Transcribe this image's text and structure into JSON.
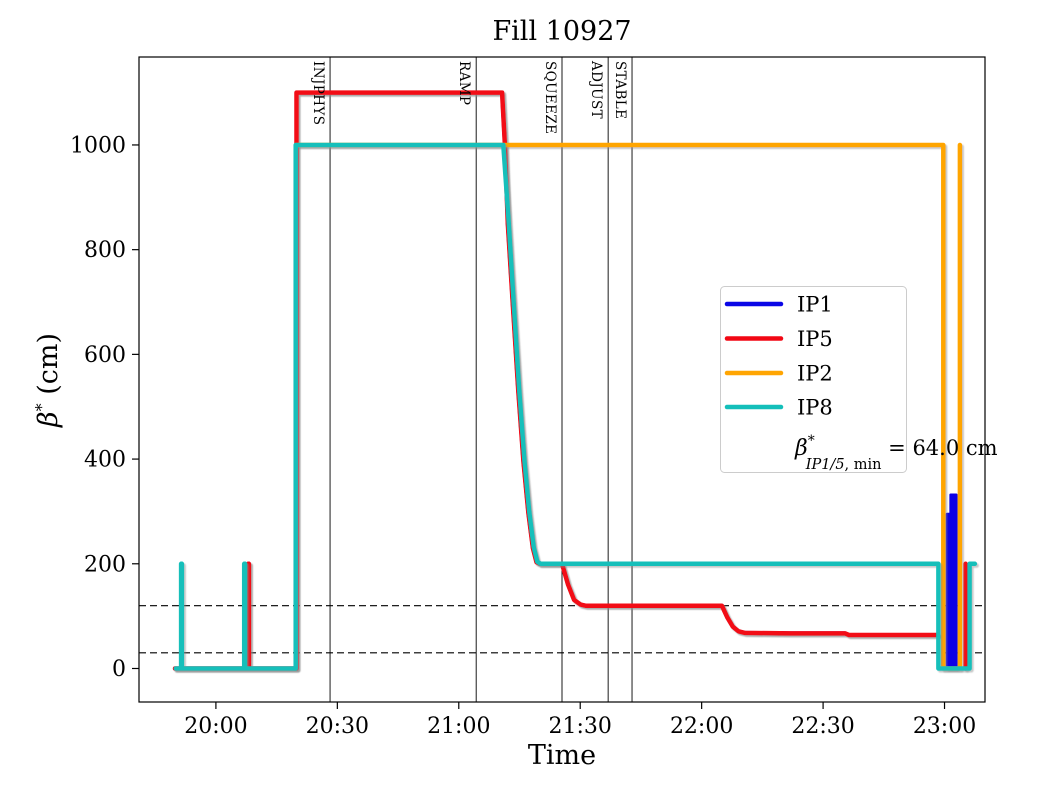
{
  "chart_data": {
    "type": "line",
    "title": "Fill 10927",
    "xlabel": "Time",
    "ylabel": {
      "symbol": "β",
      "sup": "*",
      "unit": " (cm)"
    },
    "time_axis_unit": "minutes since 19:00",
    "xlim": [
      41,
      250
    ],
    "ylim": [
      -64,
      1168
    ],
    "grid": false,
    "x_ticks": [
      {
        "t": 60,
        "label": "20:00"
      },
      {
        "t": 90,
        "label": "20:30"
      },
      {
        "t": 120,
        "label": "21:00"
      },
      {
        "t": 150,
        "label": "21:30"
      },
      {
        "t": 180,
        "label": "22:00"
      },
      {
        "t": 210,
        "label": "22:30"
      },
      {
        "t": 240,
        "label": "23:00"
      }
    ],
    "y_ticks": [
      0,
      200,
      400,
      600,
      800,
      1000
    ],
    "hlines": {
      "values": [
        120,
        30
      ],
      "style": "dashed",
      "color": "#000000"
    },
    "beam_modes": [
      {
        "label": "INJPHYS",
        "time": "20:28",
        "t": 88.2
      },
      {
        "label": "RAMP",
        "time": "21:04",
        "t": 124.3
      },
      {
        "label": "SQUEEZE",
        "time": "21:25",
        "t": 145.5
      },
      {
        "label": "ADJUST",
        "time": "21:37",
        "t": 156.9
      },
      {
        "label": "STABLE",
        "time": "21:43",
        "t": 162.8
      }
    ],
    "colors": {
      "IP1": "#0a06e6",
      "IP5": "#f20713",
      "IP2": "#ffa502",
      "IP8": "#14bfba"
    },
    "series": [
      {
        "name": "IP1",
        "width": 4,
        "segments": [
          [
            [
              49.9,
              0
            ],
            [
              68.0,
              0
            ],
            [
              68.0,
              200
            ],
            [
              68.15,
              200
            ],
            [
              68.15,
              0
            ],
            [
              79.9,
              0
            ],
            [
              79.9,
              1100
            ],
            [
              130.7,
              1100
            ],
            [
              131.4,
              1000
            ],
            [
              132.1,
              850
            ],
            [
              133.4,
              690
            ],
            [
              134.7,
              530
            ],
            [
              136.0,
              394
            ],
            [
              137.2,
              297
            ],
            [
              138.3,
              230
            ],
            [
              139.2,
              203
            ],
            [
              140.0,
              200
            ],
            [
              145.5,
              200
            ],
            [
              147.0,
              160
            ],
            [
              148.5,
              131
            ],
            [
              150.1,
              122
            ],
            [
              151.3,
              120
            ],
            [
              185.0,
              120
            ],
            [
              186.3,
              98
            ],
            [
              187.7,
              80
            ],
            [
              189.1,
              71
            ],
            [
              190.7,
              68
            ],
            [
              202.0,
              67
            ],
            [
              215.5,
              67
            ],
            [
              216.4,
              64
            ],
            [
              238.4,
              64
            ]
          ]
        ],
        "filled_segments": [
          [
            [
              240.6,
              0
            ],
            [
              240.6,
              295
            ],
            [
              241.5,
              295
            ],
            [
              241.5,
              332
            ],
            [
              242.9,
              332
            ],
            [
              242.9,
              0
            ]
          ]
        ]
      },
      {
        "name": "IP5",
        "width": 4.5,
        "segments": [
          [
            [
              49.9,
              0
            ],
            [
              68.0,
              0
            ],
            [
              68.0,
              200
            ],
            [
              68.15,
              200
            ],
            [
              68.15,
              0
            ],
            [
              79.9,
              0
            ],
            [
              79.9,
              1100
            ],
            [
              130.7,
              1100
            ],
            [
              131.4,
              1000
            ],
            [
              132.1,
              850
            ],
            [
              133.4,
              690
            ],
            [
              134.7,
              530
            ],
            [
              136.0,
              394
            ],
            [
              137.2,
              297
            ],
            [
              138.3,
              230
            ],
            [
              139.2,
              203
            ],
            [
              140.0,
              200
            ],
            [
              145.5,
              200
            ],
            [
              147.0,
              160
            ],
            [
              148.5,
              131
            ],
            [
              150.1,
              122
            ],
            [
              151.3,
              120
            ],
            [
              185.0,
              120
            ],
            [
              186.3,
              98
            ],
            [
              187.7,
              80
            ],
            [
              189.1,
              71
            ],
            [
              190.7,
              68
            ],
            [
              202.0,
              67
            ],
            [
              215.5,
              67
            ],
            [
              216.4,
              64
            ],
            [
              238.4,
              64
            ]
          ],
          [
            [
              245.2,
              0
            ],
            [
              245.2,
              200
            ]
          ]
        ]
      },
      {
        "name": "IP2",
        "width": 4.5,
        "segments": [
          [
            [
              79.8,
              1000
            ],
            [
              239.7,
              1000
            ],
            [
              239.7,
              0
            ],
            [
              243.8,
              0
            ],
            [
              243.8,
              1000
            ]
          ]
        ]
      },
      {
        "name": "IP8",
        "width": 4.5,
        "segments": [
          [
            [
              50.1,
              0
            ],
            [
              51.4,
              0
            ],
            [
              51.4,
              200
            ],
            [
              51.6,
              200
            ],
            [
              51.6,
              0
            ],
            [
              67.0,
              0
            ],
            [
              67.0,
              200
            ],
            [
              67.2,
              200
            ],
            [
              67.2,
              0
            ],
            [
              79.7,
              0
            ],
            [
              79.7,
              1000
            ],
            [
              131.0,
              1000
            ],
            [
              132.3,
              855
            ],
            [
              133.6,
              695
            ],
            [
              134.9,
              535
            ],
            [
              136.2,
              398
            ],
            [
              137.4,
              300
            ],
            [
              138.5,
              232
            ],
            [
              139.4,
              204
            ],
            [
              140.2,
              200
            ],
            [
              238.5,
              200
            ],
            [
              238.5,
              0
            ],
            [
              246.2,
              0
            ],
            [
              246.2,
              200
            ],
            [
              247.5,
              200
            ]
          ]
        ]
      }
    ],
    "legend": {
      "entries": [
        {
          "label": "IP1"
        },
        {
          "label": "IP5"
        },
        {
          "label": "IP2"
        },
        {
          "label": "IP8"
        }
      ],
      "annotation": {
        "beta": "β",
        "sup": "*",
        "sub_italic": "IP1/5",
        "sub_roman": ", min",
        "rhs": " = 64.0 cm"
      }
    }
  }
}
